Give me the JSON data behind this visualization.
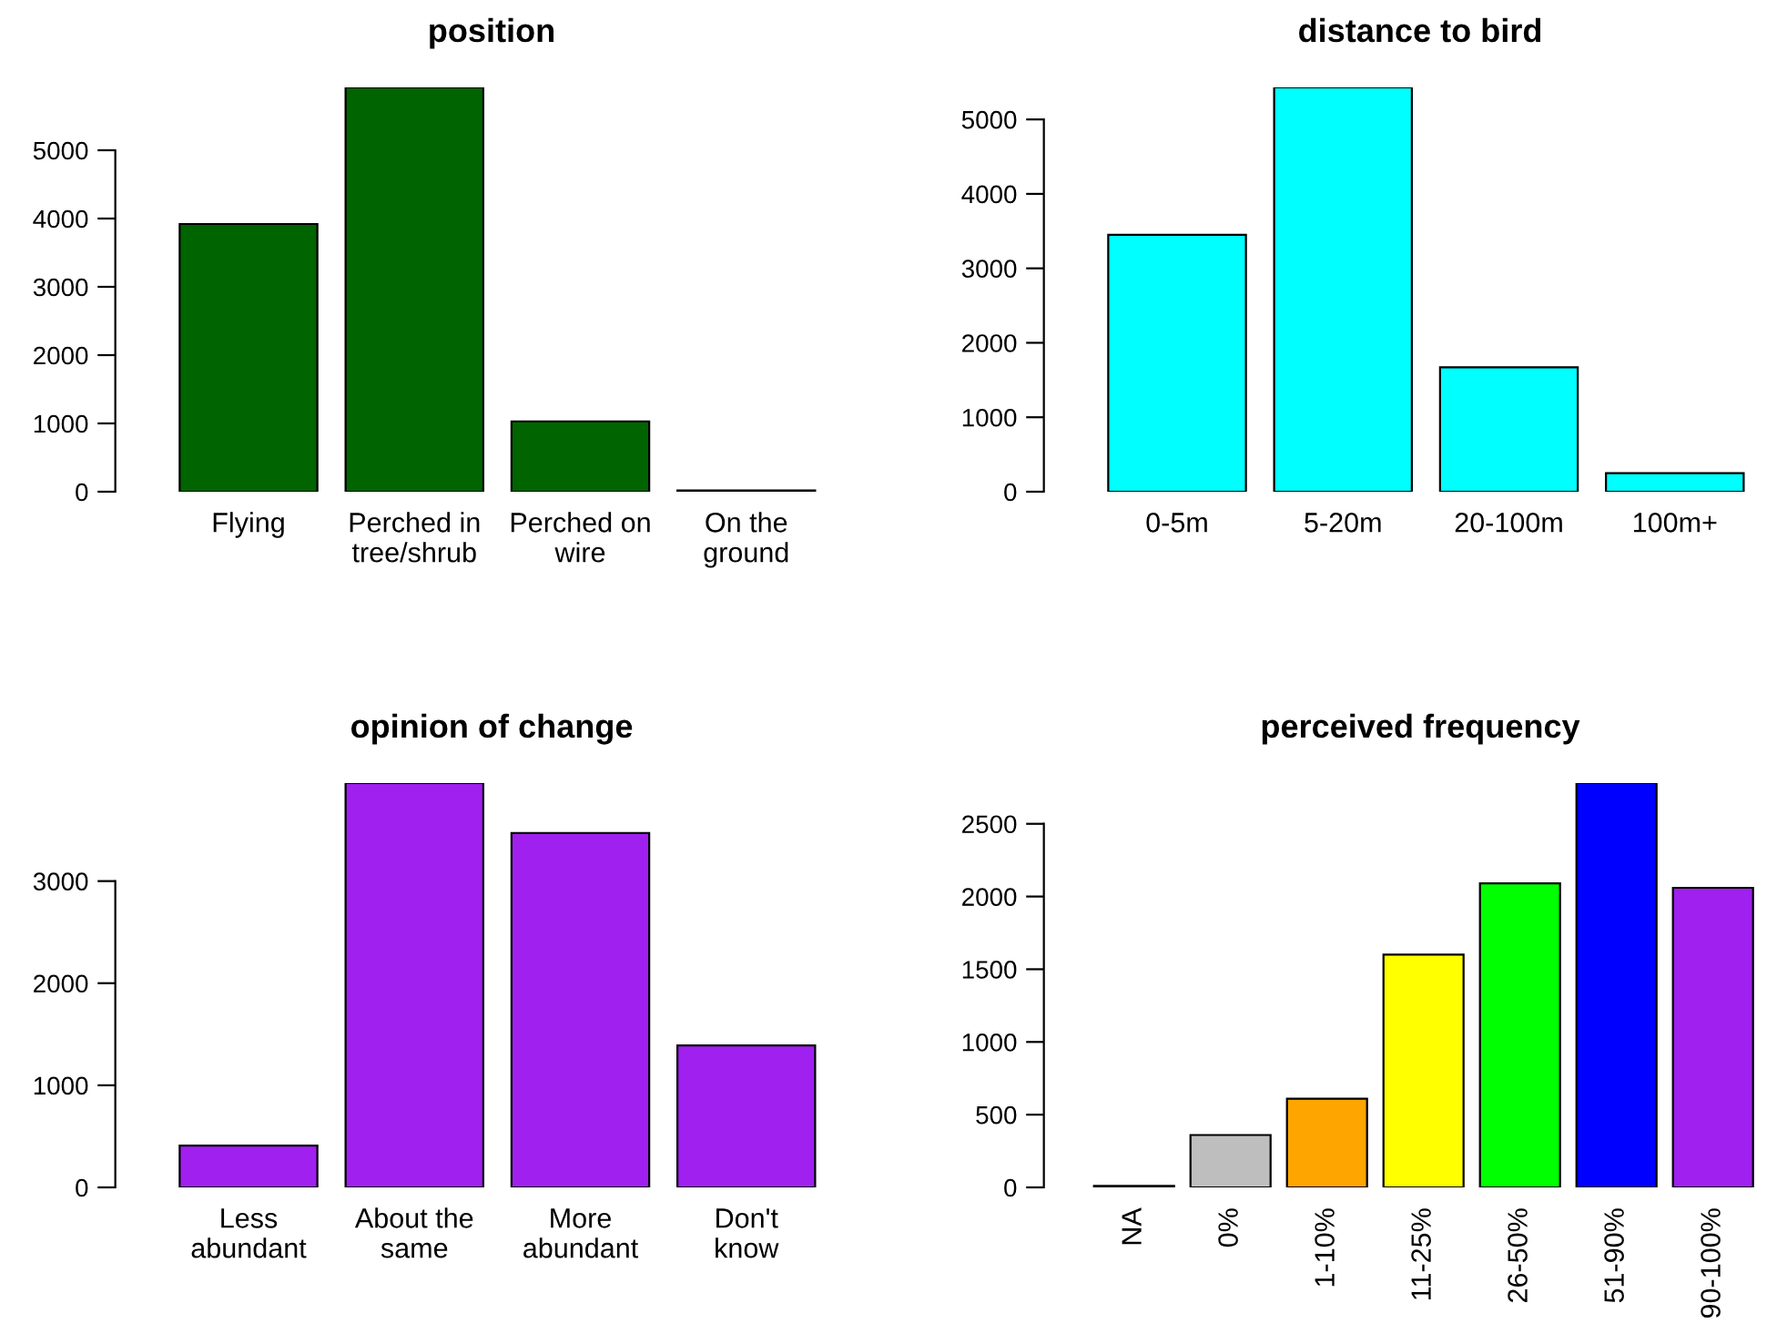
{
  "chart_data": [
    {
      "type": "bar",
      "title": "position",
      "categories": [
        "Flying",
        "Perched in\ntree/shrub",
        "Perched on\nwire",
        "On the\nground"
      ],
      "values": [
        3920,
        5920,
        1030,
        20
      ],
      "color": "#006400",
      "ylim": [
        0,
        5920
      ],
      "yticks": [
        0,
        1000,
        2000,
        3000,
        4000,
        5000
      ]
    },
    {
      "type": "bar",
      "title": "distance to bird",
      "categories": [
        "0-5m",
        "5-20m",
        "20-100m",
        "100m+"
      ],
      "values": [
        3450,
        5430,
        1670,
        250
      ],
      "color": "#00ffff",
      "ylim": [
        0,
        5430
      ],
      "yticks": [
        0,
        1000,
        2000,
        3000,
        4000,
        5000
      ]
    },
    {
      "type": "bar",
      "title": "opinion of change",
      "categories": [
        "Less\nabundant",
        "About the\nsame",
        "More\nabundant",
        "Don't\nknow"
      ],
      "values": [
        410,
        3960,
        3470,
        1390
      ],
      "color": "#a020f0",
      "ylim": [
        0,
        3960
      ],
      "yticks": [
        0,
        1000,
        2000,
        3000
      ]
    },
    {
      "type": "bar",
      "title": "perceived frequency",
      "categories": [
        "NA",
        "0%",
        "1-10%",
        "11-25%",
        "26-50%",
        "51-90%",
        "90-100%"
      ],
      "values": [
        10,
        360,
        610,
        1600,
        2090,
        2780,
        2060
      ],
      "colors": [
        "#000000",
        "#bebebe",
        "#ffa500",
        "#ffff00",
        "#00ff00",
        "#0000ff",
        "#a020f0"
      ],
      "ylim": [
        0,
        2780
      ],
      "yticks": [
        0,
        500,
        1000,
        1500,
        2000,
        2500
      ]
    }
  ]
}
